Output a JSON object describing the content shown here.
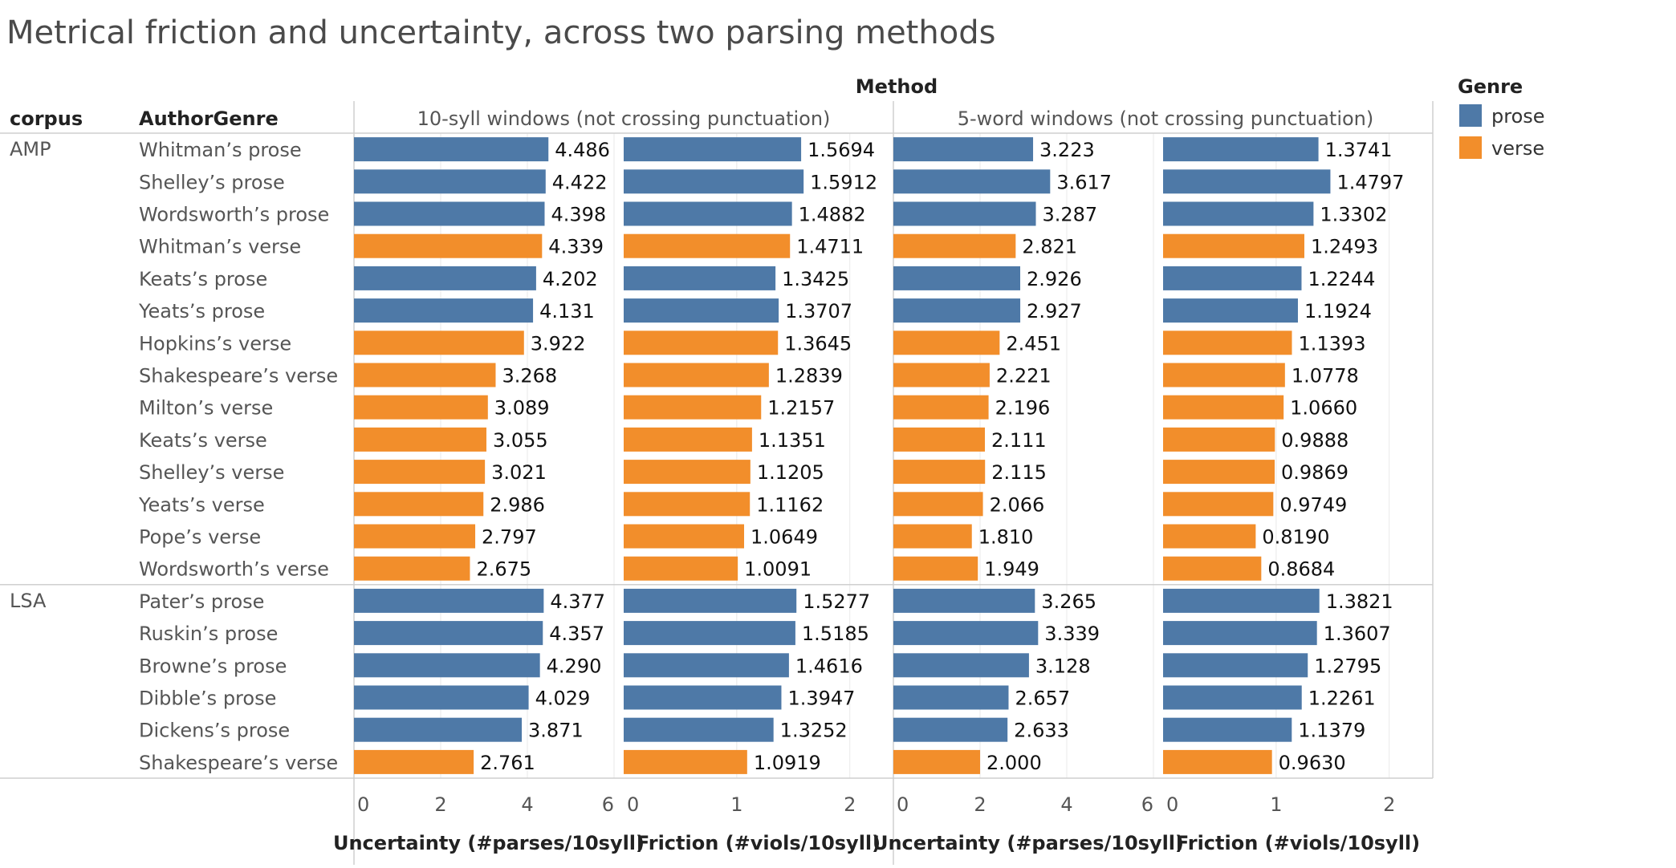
{
  "title": "Metrical friction and uncertainty, across two parsing methods",
  "headers": {
    "method": "Method",
    "corpus": "corpus",
    "authorgenre": "AuthorGenre",
    "methods": [
      "10-syll windows (not crossing punctuation)",
      "5-word windows (not crossing punctuation)"
    ]
  },
  "legend": {
    "title": "Genre",
    "items": [
      {
        "label": "prose",
        "color": "#4e79a7"
      },
      {
        "label": "verse",
        "color": "#f28e2b"
      }
    ]
  },
  "colors": {
    "prose": "#4e79a7",
    "verse": "#f28e2b",
    "grid": "#e8e8e8",
    "rule": "#cfcfcf"
  },
  "chart_data": {
    "type": "bar",
    "orientation": "horizontal",
    "grid": true,
    "legend_position": "top-right",
    "groups": [
      {
        "name": "AMP",
        "rows": [
          {
            "label": "Whitman’s prose",
            "genre": "prose"
          },
          {
            "label": "Shelley’s prose",
            "genre": "prose"
          },
          {
            "label": "Wordsworth’s prose",
            "genre": "prose"
          },
          {
            "label": "Whitman’s verse",
            "genre": "verse"
          },
          {
            "label": "Keats’s prose",
            "genre": "prose"
          },
          {
            "label": "Yeats’s prose",
            "genre": "prose"
          },
          {
            "label": "Hopkins’s verse",
            "genre": "verse"
          },
          {
            "label": "Shakespeare’s verse",
            "genre": "verse"
          },
          {
            "label": "Milton’s verse",
            "genre": "verse"
          },
          {
            "label": "Keats’s verse",
            "genre": "verse"
          },
          {
            "label": "Shelley’s verse",
            "genre": "verse"
          },
          {
            "label": "Yeats’s verse",
            "genre": "verse"
          },
          {
            "label": "Pope’s verse",
            "genre": "verse"
          },
          {
            "label": "Wordsworth’s verse",
            "genre": "verse"
          }
        ]
      },
      {
        "name": "LSA",
        "rows": [
          {
            "label": "Pater’s prose",
            "genre": "prose"
          },
          {
            "label": "Ruskin’s prose",
            "genre": "prose"
          },
          {
            "label": "Browne’s prose",
            "genre": "prose"
          },
          {
            "label": "Dibble’s prose",
            "genre": "prose"
          },
          {
            "label": "Dickens’s prose",
            "genre": "prose"
          },
          {
            "label": "Shakespeare’s verse",
            "genre": "verse"
          }
        ]
      }
    ],
    "panels": [
      {
        "axis_title": "Uncertainty (#parses/10syll)",
        "xlim": [
          0,
          6
        ],
        "ticks": [
          "0",
          "2",
          "4",
          "6"
        ],
        "values": [
          "4.486",
          "4.422",
          "4.398",
          "4.339",
          "4.202",
          "4.131",
          "3.922",
          "3.268",
          "3.089",
          "3.055",
          "3.021",
          "2.986",
          "2.797",
          "2.675",
          "4.377",
          "4.357",
          "4.290",
          "4.029",
          "3.871",
          "2.761"
        ]
      },
      {
        "axis_title": "Friction (#viols/10syll)",
        "xlim": [
          0,
          2.3
        ],
        "ticks": [
          "0",
          "1",
          "2"
        ],
        "values": [
          "1.5694",
          "1.5912",
          "1.4882",
          "1.4711",
          "1.3425",
          "1.3707",
          "1.3645",
          "1.2839",
          "1.2157",
          "1.1351",
          "1.1205",
          "1.1162",
          "1.0649",
          "1.0091",
          "1.5277",
          "1.5185",
          "1.4616",
          "1.3947",
          "1.3252",
          "1.0919"
        ]
      },
      {
        "axis_title": "Uncertainty (#parses/10syll)",
        "xlim": [
          0,
          6
        ],
        "ticks": [
          "0",
          "2",
          "4",
          "6"
        ],
        "values": [
          "3.223",
          "3.617",
          "3.287",
          "2.821",
          "2.926",
          "2.927",
          "2.451",
          "2.221",
          "2.196",
          "2.111",
          "2.115",
          "2.066",
          "1.810",
          "1.949",
          "3.265",
          "3.339",
          "3.128",
          "2.657",
          "2.633",
          "2.000"
        ]
      },
      {
        "axis_title": "Friction (#viols/10syll)",
        "xlim": [
          0,
          2.3
        ],
        "ticks": [
          "0",
          "1",
          "2"
        ],
        "values": [
          "1.3741",
          "1.4797",
          "1.3302",
          "1.2493",
          "1.2244",
          "1.1924",
          "1.1393",
          "1.0778",
          "1.0660",
          "0.9888",
          "0.9869",
          "0.9749",
          "0.8190",
          "0.8684",
          "1.3821",
          "1.3607",
          "1.2795",
          "1.2261",
          "1.1379",
          "0.9630"
        ]
      }
    ]
  }
}
